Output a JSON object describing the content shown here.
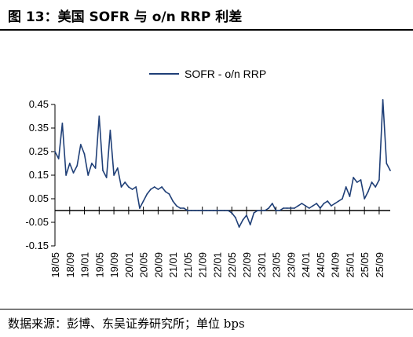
{
  "header": {
    "title": "图 13：美国 SOFR 与 o/n RRP 利差"
  },
  "footer": {
    "source": "数据来源：彭博、东吴证券研究所；单位 bps"
  },
  "colors": {
    "series": "#1F3F77",
    "axis": "#000000"
  },
  "chart_data": {
    "type": "line",
    "title": "",
    "xlabel": "",
    "ylabel": "",
    "ylim": [
      -0.15,
      0.45
    ],
    "yticks": [
      0.45,
      0.35,
      0.25,
      0.15,
      0.05,
      -0.05,
      -0.15
    ],
    "ytick_labels": [
      "0.45",
      "0.35",
      "0.25",
      "0.15",
      "0.05",
      "-0.05",
      "-0.15"
    ],
    "xticks": [
      "18/05",
      "18/09",
      "19/01",
      "19/05",
      "19/09",
      "20/01",
      "20/05",
      "20/09",
      "21/01",
      "21/05",
      "21/09",
      "22/01",
      "22/05",
      "22/09",
      "23/01",
      "23/05",
      "23/09",
      "24/01",
      "24/05",
      "24/09",
      "25/01",
      "25/05",
      "25/09"
    ],
    "legend": {
      "position": "top-center",
      "entries": [
        "SOFR - o/n RRP"
      ]
    },
    "grid": false,
    "series": [
      {
        "name": "SOFR - o/n RRP",
        "points": [
          [
            "18/05",
            0.25
          ],
          [
            "18/06",
            0.22
          ],
          [
            "18/07",
            0.37
          ],
          [
            "18/08",
            0.15
          ],
          [
            "18/09",
            0.2
          ],
          [
            "18/10",
            0.16
          ],
          [
            "18/11",
            0.19
          ],
          [
            "18/12",
            0.28
          ],
          [
            "19/01",
            0.24
          ],
          [
            "19/02",
            0.15
          ],
          [
            "19/03",
            0.2
          ],
          [
            "19/04",
            0.18
          ],
          [
            "19/05",
            0.4
          ],
          [
            "19/06",
            0.17
          ],
          [
            "19/07",
            0.14
          ],
          [
            "19/08",
            0.34
          ],
          [
            "19/09",
            0.15
          ],
          [
            "19/10",
            0.18
          ],
          [
            "19/11",
            0.1
          ],
          [
            "19/12",
            0.12
          ],
          [
            "20/01",
            0.1
          ],
          [
            "20/02",
            0.09
          ],
          [
            "20/03",
            0.1
          ],
          [
            "20/04",
            0.01
          ],
          [
            "20/05",
            0.04
          ],
          [
            "20/06",
            0.07
          ],
          [
            "20/07",
            0.09
          ],
          [
            "20/08",
            0.1
          ],
          [
            "20/09",
            0.09
          ],
          [
            "20/10",
            0.1
          ],
          [
            "20/11",
            0.08
          ],
          [
            "20/12",
            0.07
          ],
          [
            "21/01",
            0.04
          ],
          [
            "21/02",
            0.02
          ],
          [
            "21/03",
            0.01
          ],
          [
            "21/04",
            0.01
          ],
          [
            "21/05",
            0.0
          ],
          [
            "21/06",
            0.0
          ],
          [
            "21/07",
            0.0
          ],
          [
            "21/08",
            0.0
          ],
          [
            "21/09",
            0.0
          ],
          [
            "21/10",
            0.0
          ],
          [
            "21/11",
            0.0
          ],
          [
            "21/12",
            0.0
          ],
          [
            "22/01",
            0.0
          ],
          [
            "22/02",
            0.0
          ],
          [
            "22/03",
            0.0
          ],
          [
            "22/04",
            0.0
          ],
          [
            "22/05",
            -0.01
          ],
          [
            "22/06",
            -0.03
          ],
          [
            "22/07",
            -0.07
          ],
          [
            "22/08",
            -0.04
          ],
          [
            "22/09",
            -0.02
          ],
          [
            "22/10",
            -0.06
          ],
          [
            "22/11",
            -0.01
          ],
          [
            "22/12",
            0.0
          ],
          [
            "23/01",
            0.0
          ],
          [
            "23/02",
            0.0
          ],
          [
            "23/03",
            0.01
          ],
          [
            "23/04",
            0.03
          ],
          [
            "23/05",
            0.0
          ],
          [
            "23/06",
            0.0
          ],
          [
            "23/07",
            0.01
          ],
          [
            "23/08",
            0.01
          ],
          [
            "23/09",
            0.01
          ],
          [
            "23/10",
            0.01
          ],
          [
            "23/11",
            0.02
          ],
          [
            "23/12",
            0.03
          ],
          [
            "24/01",
            0.02
          ],
          [
            "24/02",
            0.01
          ],
          [
            "24/03",
            0.02
          ],
          [
            "24/04",
            0.03
          ],
          [
            "24/05",
            0.01
          ],
          [
            "24/06",
            0.03
          ],
          [
            "24/07",
            0.04
          ],
          [
            "24/08",
            0.02
          ],
          [
            "24/09",
            0.03
          ],
          [
            "24/10",
            0.04
          ],
          [
            "24/11",
            0.05
          ],
          [
            "24/12",
            0.1
          ],
          [
            "25/01",
            0.06
          ],
          [
            "25/02",
            0.14
          ],
          [
            "25/03",
            0.12
          ],
          [
            "25/04",
            0.13
          ],
          [
            "25/05",
            0.05
          ],
          [
            "25/06",
            0.08
          ],
          [
            "25/07",
            0.12
          ],
          [
            "25/08",
            0.1
          ],
          [
            "25/09",
            0.13
          ],
          [
            "25/10",
            0.47
          ],
          [
            "25/11",
            0.2
          ],
          [
            "25/12",
            0.17
          ]
        ]
      }
    ]
  }
}
